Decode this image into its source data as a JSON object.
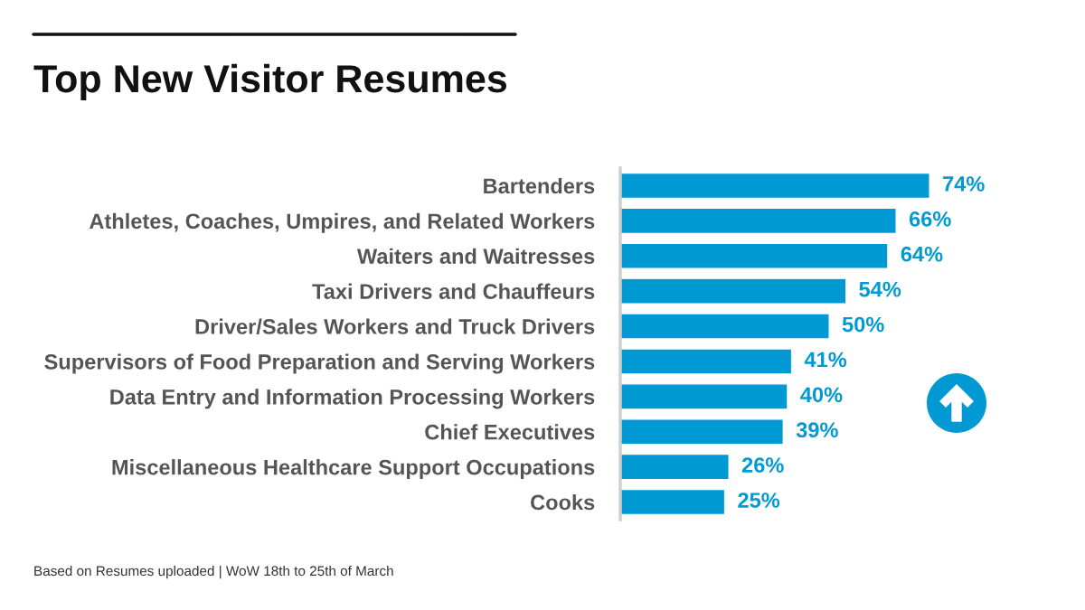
{
  "chart_data": {
    "type": "bar",
    "orientation": "horizontal",
    "title": "Top New Visitor Resumes",
    "categories": [
      "Bartenders",
      "Athletes, Coaches, Umpires, and Related Workers",
      "Waiters and Waitresses",
      "Taxi Drivers and Chauffeurs",
      "Driver/Sales Workers and Truck Drivers",
      "Supervisors of Food Preparation and Serving Workers",
      "Data Entry and Information Processing Workers",
      "Chief Executives",
      "Miscellaneous Healthcare Support Occupations",
      "Cooks"
    ],
    "values": [
      74,
      66,
      64,
      54,
      50,
      41,
      40,
      39,
      26,
      25
    ],
    "value_labels": [
      "74%",
      "66%",
      "64%",
      "54%",
      "50%",
      "41%",
      "40%",
      "39%",
      "26%",
      "25%"
    ],
    "color": "#0099d3",
    "tick_labels": "y",
    "annotations": [
      "Based on Resumes uploaded | WoW 18th to 25th of March"
    ]
  }
}
